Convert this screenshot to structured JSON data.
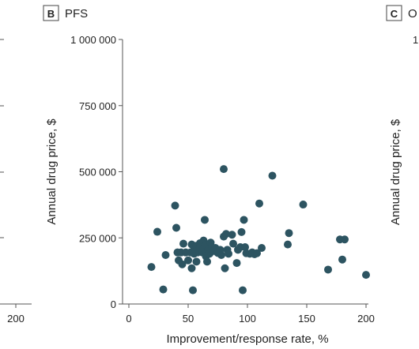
{
  "panels": {
    "left_fragment": {
      "x_tick_label": "200"
    },
    "b": {
      "letter": "B",
      "title": "PFS"
    },
    "c": {
      "letter": "C",
      "title": "O",
      "y_tick_fragment": "1",
      "ylabel": "Annual drug price, $"
    }
  },
  "colors": {
    "point": "#2d5461",
    "axis": "#555555",
    "text": "#222222",
    "panel_box": "#444444"
  },
  "chart_data": {
    "type": "scatter",
    "title": "PFS",
    "xlabel": "Improvement/response rate, %",
    "ylabel": "Annual drug price, $",
    "xlim": [
      0,
      200
    ],
    "ylim": [
      0,
      1000000
    ],
    "x_ticks": [
      0,
      50,
      100,
      150,
      200
    ],
    "x_tick_labels": [
      "0",
      "50",
      "100",
      "150",
      "200"
    ],
    "y_ticks": [
      0,
      250000,
      500000,
      750000,
      1000000
    ],
    "y_tick_labels": [
      "0",
      "250 000",
      "500 000",
      "750 000",
      "1 000 000"
    ],
    "grid": false,
    "legend": "none",
    "points": [
      [
        19,
        140000
      ],
      [
        24,
        273000
      ],
      [
        29,
        55000
      ],
      [
        31,
        185000
      ],
      [
        39,
        372000
      ],
      [
        40,
        288000
      ],
      [
        41,
        195000
      ],
      [
        42,
        165000
      ],
      [
        44,
        195000
      ],
      [
        45,
        150000
      ],
      [
        46,
        228000
      ],
      [
        48,
        195000
      ],
      [
        50,
        165000
      ],
      [
        52,
        195000
      ],
      [
        53,
        135000
      ],
      [
        53,
        225000
      ],
      [
        54,
        52000
      ],
      [
        55,
        215000
      ],
      [
        55,
        190000
      ],
      [
        57,
        160000
      ],
      [
        57,
        220000
      ],
      [
        58,
        195000
      ],
      [
        59,
        205000
      ],
      [
        60,
        230000
      ],
      [
        60,
        215000
      ],
      [
        62,
        195000
      ],
      [
        63,
        210000
      ],
      [
        63,
        240000
      ],
      [
        64,
        318000
      ],
      [
        65,
        180000
      ],
      [
        65,
        222000
      ],
      [
        66,
        160000
      ],
      [
        67,
        205000
      ],
      [
        68,
        190000
      ],
      [
        69,
        232000
      ],
      [
        70,
        215000
      ],
      [
        71,
        200000
      ],
      [
        73,
        212000
      ],
      [
        75,
        193000
      ],
      [
        77,
        205000
      ],
      [
        78,
        185000
      ],
      [
        80,
        255000
      ],
      [
        80,
        510000
      ],
      [
        81,
        135000
      ],
      [
        82,
        265000
      ],
      [
        83,
        205000
      ],
      [
        84,
        190000
      ],
      [
        87,
        262000
      ],
      [
        88,
        228000
      ],
      [
        91,
        155000
      ],
      [
        92,
        205000
      ],
      [
        94,
        215000
      ],
      [
        95,
        272000
      ],
      [
        96,
        52000
      ],
      [
        97,
        318000
      ],
      [
        98,
        215000
      ],
      [
        99,
        192000
      ],
      [
        102,
        190000
      ],
      [
        104,
        195000
      ],
      [
        106,
        188000
      ],
      [
        108,
        192000
      ],
      [
        110,
        380000
      ],
      [
        112,
        212000
      ],
      [
        121,
        485000
      ],
      [
        134,
        225000
      ],
      [
        135,
        268000
      ],
      [
        147,
        376000
      ],
      [
        168,
        130000
      ],
      [
        178,
        244000
      ],
      [
        180,
        168000
      ],
      [
        182,
        244000
      ],
      [
        200,
        110000
      ]
    ]
  }
}
